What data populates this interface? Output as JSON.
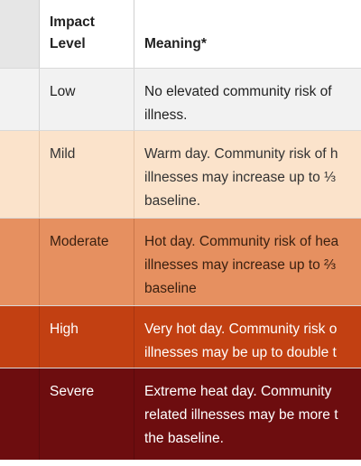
{
  "table": {
    "headers": {
      "color": "",
      "impact_level": "Impact\nLevel",
      "meaning": "Meaning*"
    },
    "rows": [
      {
        "level": "Low",
        "meaning": "No elevated community risk of\nillness.",
        "color": "#f2f2f2"
      },
      {
        "level": "Mild",
        "meaning": "Warm day. Community risk of h\nillnesses may increase up to ⅓\nbaseline.",
        "color": "#fbe3cb"
      },
      {
        "level": "Moderate",
        "meaning": "Hot day. Community risk of hea\nillnesses may increase up to ⅔\nbaseline",
        "color": "#e69060"
      },
      {
        "level": "High",
        "meaning": "Very hot day. Community risk o\nillnesses may be up to double t",
        "color": "#c24012"
      },
      {
        "level": "Severe",
        "meaning": "Extreme heat day. Community\nrelated illnesses may be more t\nthe baseline.",
        "color": "#6d0d0f"
      }
    ]
  }
}
